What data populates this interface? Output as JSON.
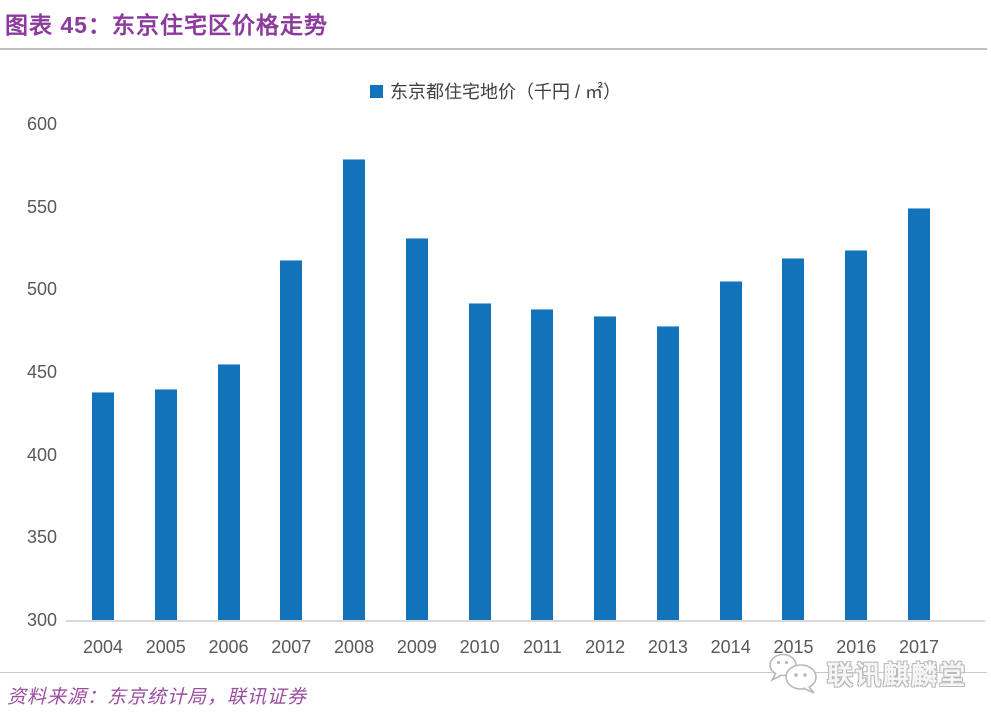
{
  "header": {
    "title": "图表 45：东京住宅区价格走势"
  },
  "chart_data": {
    "type": "bar",
    "title": "",
    "legend": "东京都住宅地价（千円 / ㎡）",
    "legend_position": "top",
    "categories": [
      "2004",
      "2005",
      "2006",
      "2007",
      "2008",
      "2009",
      "2010",
      "2011",
      "2012",
      "2013",
      "2014",
      "2015",
      "2016",
      "2017"
    ],
    "values": [
      438,
      440,
      455,
      518,
      579,
      531,
      492,
      488,
      484,
      478,
      505,
      519,
      524,
      549
    ],
    "xlabel": "",
    "ylabel": "",
    "ylim": [
      300,
      600
    ],
    "yticks": [
      300,
      350,
      400,
      450,
      500,
      550,
      600
    ],
    "grid": false,
    "bar_color": "#1373BA"
  },
  "footer": {
    "source": "资料来源：东京统计局，联讯证券",
    "logo_text": "联讯麒麟堂"
  },
  "icons": {
    "logo_icon": "wechat-icon"
  },
  "colors": {
    "accent_purple": "#8C3A9D",
    "source_purple": "#9B4DA0",
    "bar_blue": "#1373BA",
    "axis_gray": "#D9D9D9",
    "tick_gray": "#595959",
    "rule_gray": "#BFBFBF"
  }
}
